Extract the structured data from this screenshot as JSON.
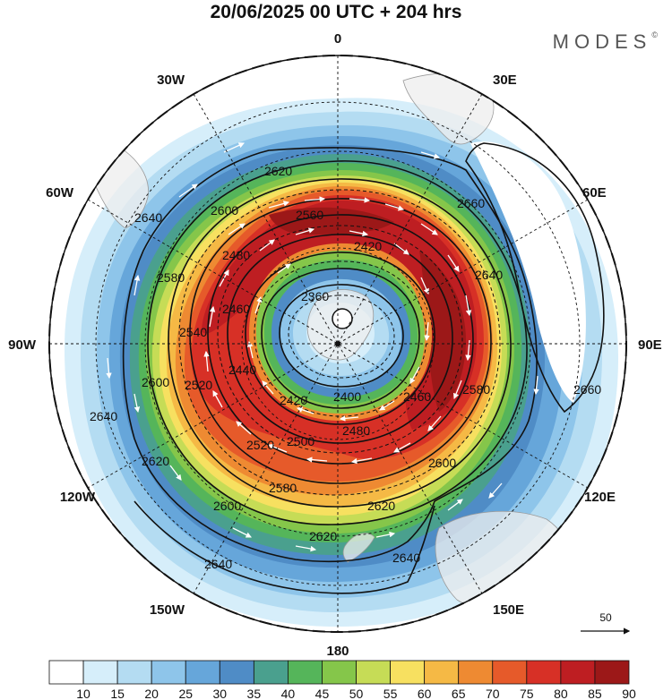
{
  "header": {
    "title": "20/06/2025  00 UTC  + 204 hrs",
    "brand": "MODES",
    "brand_mark": "©"
  },
  "map": {
    "projection": "south polar stereographic",
    "longitude_labels": [
      {
        "text": "0",
        "lon": 0
      },
      {
        "text": "30E",
        "lon": 30
      },
      {
        "text": "60E",
        "lon": 60
      },
      {
        "text": "90E",
        "lon": 90
      },
      {
        "text": "120E",
        "lon": 120
      },
      {
        "text": "150E",
        "lon": 150
      },
      {
        "text": "180",
        "lon": 180
      },
      {
        "text": "150W",
        "lon": -150
      },
      {
        "text": "120W",
        "lon": -120
      },
      {
        "text": "90W",
        "lon": -90
      },
      {
        "text": "60W",
        "lon": -60
      },
      {
        "text": "30W",
        "lon": -30
      }
    ],
    "contour_labels": [
      "2360",
      "2400",
      "2420",
      "2440",
      "2460",
      "2480",
      "2500",
      "2520",
      "2540",
      "2560",
      "2580",
      "2600",
      "2620",
      "2640",
      "2660"
    ],
    "wind_vector_reference": "50"
  },
  "colorbar": {
    "ticks": [
      "10",
      "15",
      "20",
      "25",
      "30",
      "35",
      "40",
      "45",
      "50",
      "55",
      "60",
      "65",
      "70",
      "75",
      "80",
      "85",
      "90"
    ],
    "colors": [
      "#ffffff",
      "#d6eefa",
      "#b4dcf2",
      "#8ec5ea",
      "#66a6da",
      "#4f8cc6",
      "#4aa08e",
      "#55b55a",
      "#85c64a",
      "#c6dc56",
      "#f7e060",
      "#f5b945",
      "#ee8a32",
      "#e65a2a",
      "#d73026",
      "#be1e22",
      "#9c1818"
    ]
  }
}
